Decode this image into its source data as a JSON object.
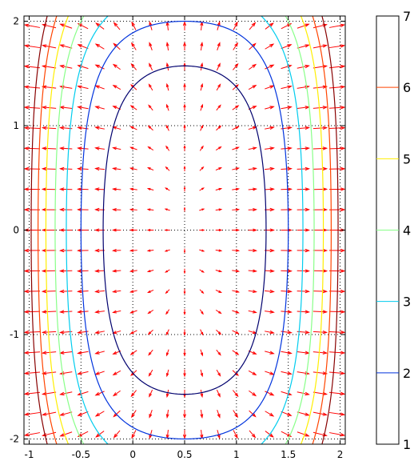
{
  "chart_data": {
    "type": "contour",
    "title": "",
    "xlabel": "",
    "ylabel": "",
    "xlim": [
      -1.05,
      2.05
    ],
    "ylim": [
      -2.05,
      2.05
    ],
    "x_ticks": [
      {
        "value": -1,
        "label": "-1"
      },
      {
        "value": -0.5,
        "label": "-0.5"
      },
      {
        "value": 0,
        "label": "0"
      },
      {
        "value": 0.5,
        "label": "0.5"
      },
      {
        "value": 1,
        "label": "1"
      },
      {
        "value": 1.5,
        "label": "1.5"
      },
      {
        "value": 2,
        "label": "2"
      }
    ],
    "y_ticks": [
      {
        "value": -2,
        "label": "-2"
      },
      {
        "value": -1,
        "label": "-1"
      },
      {
        "value": 0,
        "label": "0"
      },
      {
        "value": 1,
        "label": "1"
      },
      {
        "value": 2,
        "label": "2"
      }
    ],
    "grid": "dotted",
    "field": "(x-0.5)^4 + (y/2)^4 + (x-0.5)^2 + (y/2)^2",
    "contour_levels": [
      {
        "level": 1,
        "color": "#00006e"
      },
      {
        "level": 2,
        "color": "#0033dd"
      },
      {
        "level": 3,
        "color": "#00ccee"
      },
      {
        "level": 4,
        "color": "#88ff88"
      },
      {
        "level": 5,
        "color": "#ffee00"
      },
      {
        "level": 6,
        "color": "#ff4400"
      },
      {
        "level": 7,
        "color": "#880000"
      }
    ],
    "vector_field": {
      "description": "gradient arrows",
      "color": "#ff0000",
      "nx": 19,
      "ny": 21
    },
    "colorbar": {
      "min": 1,
      "max": 7,
      "ticks": [
        {
          "value": 1,
          "label": "1",
          "color": "#00006e"
        },
        {
          "value": 2,
          "label": "2",
          "color": "#0033dd"
        },
        {
          "value": 3,
          "label": "3",
          "color": "#00ccee"
        },
        {
          "value": 4,
          "label": "4",
          "color": "#88ff88"
        },
        {
          "value": 5,
          "label": "5",
          "color": "#ffee00"
        },
        {
          "value": 6,
          "label": "6",
          "color": "#ff4400"
        },
        {
          "value": 7,
          "label": "7",
          "color": "#880000"
        }
      ]
    }
  }
}
